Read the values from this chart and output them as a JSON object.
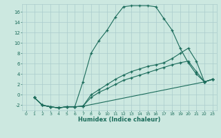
{
  "xlabel": "Humidex (Indice chaleur)",
  "background_color": "#cce8e0",
  "grid_color": "#aacccc",
  "line_color": "#1a6b5a",
  "xlim": [
    -0.5,
    23.5
  ],
  "ylim": [
    -3,
    17.5
  ],
  "xticks": [
    0,
    1,
    2,
    3,
    4,
    5,
    6,
    7,
    8,
    9,
    10,
    11,
    12,
    13,
    14,
    15,
    16,
    17,
    18,
    19,
    20,
    21,
    22,
    23
  ],
  "yticks": [
    -2,
    0,
    2,
    4,
    6,
    8,
    10,
    12,
    14,
    16
  ],
  "series": [
    {
      "x": [
        1,
        2,
        3,
        4,
        5,
        6,
        7,
        8,
        9,
        10,
        11,
        12,
        13,
        14,
        15,
        16,
        17,
        18,
        19,
        20,
        21,
        22,
        23
      ],
      "y": [
        -0.5,
        -2,
        -2.3,
        -2.5,
        -2.3,
        -2.3,
        2.5,
        8.0,
        10.5,
        12.5,
        15.0,
        17.0,
        17.2,
        17.2,
        17.2,
        17.0,
        14.7,
        12.5,
        9.0,
        6.2,
        4.0,
        2.5,
        3.0
      ]
    },
    {
      "x": [
        1,
        2,
        3,
        4,
        5,
        6,
        7,
        8,
        9,
        10,
        11,
        12,
        13,
        14,
        15,
        16,
        17,
        18,
        19,
        20,
        21,
        22,
        23
      ],
      "y": [
        -0.5,
        -2,
        -2.3,
        -2.5,
        -2.3,
        -2.3,
        -2.2,
        0.0,
        1.0,
        2.0,
        3.0,
        3.8,
        4.5,
        5.0,
        5.5,
        5.8,
        6.2,
        7.0,
        8.0,
        9.0,
        6.5,
        2.5,
        3.0
      ]
    },
    {
      "x": [
        1,
        2,
        3,
        4,
        5,
        6,
        7,
        8,
        9,
        10,
        11,
        12,
        13,
        14,
        15,
        16,
        17,
        18,
        19,
        20,
        21,
        22,
        23
      ],
      "y": [
        -0.5,
        -2,
        -2.3,
        -2.5,
        -2.3,
        -2.3,
        -2.2,
        -0.5,
        0.5,
        1.2,
        2.0,
        2.8,
        3.3,
        3.8,
        4.3,
        4.8,
        5.3,
        5.8,
        6.2,
        6.5,
        4.5,
        2.5,
        3.0
      ]
    },
    {
      "x": [
        1,
        2,
        3,
        4,
        5,
        6,
        7,
        22,
        23
      ],
      "y": [
        -0.5,
        -2,
        -2.3,
        -2.5,
        -2.3,
        -2.3,
        -2.2,
        2.5,
        3.0
      ]
    }
  ]
}
